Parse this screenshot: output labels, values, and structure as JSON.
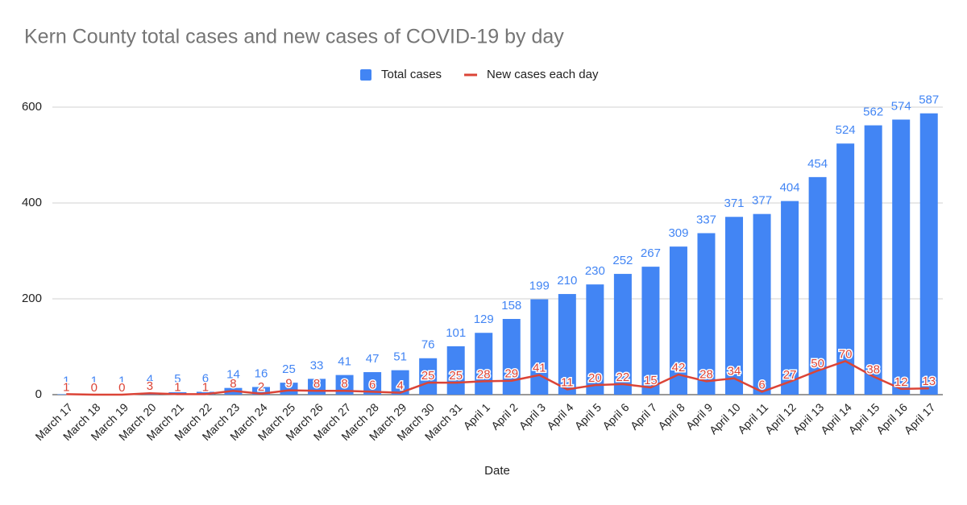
{
  "chart_data": {
    "type": "bar",
    "title": "Kern County total cases and new cases of COVID-19 by day",
    "x_label": "Date",
    "categories": [
      "March 17",
      "March 18",
      "March 19",
      "March 20",
      "March 21",
      "March 22",
      "March 23",
      "March 24",
      "March 25",
      "March 26",
      "March 27",
      "March 28",
      "March 29",
      "March 30",
      "March 31",
      "April 1",
      "April 2",
      "April 3",
      "April 4",
      "April 5",
      "April 6",
      "April 7",
      "April 8",
      "April 9",
      "April 10",
      "April 11",
      "April 12",
      "April 13",
      "April 14",
      "April 15",
      "April 16",
      "April 17"
    ],
    "series": [
      {
        "name": "Total cases",
        "type": "bar",
        "color": "#4285f4",
        "values": [
          1,
          1,
          1,
          4,
          5,
          6,
          14,
          16,
          25,
          33,
          41,
          47,
          51,
          76,
          101,
          129,
          158,
          199,
          210,
          230,
          252,
          267,
          309,
          337,
          371,
          377,
          404,
          454,
          524,
          562,
          574,
          587
        ]
      },
      {
        "name": "New cases each day",
        "type": "line",
        "color": "#db4437",
        "values": [
          1,
          0,
          0,
          3,
          1,
          1,
          8,
          2,
          9,
          8,
          8,
          6,
          4,
          25,
          25,
          28,
          29,
          41,
          11,
          20,
          22,
          15,
          42,
          28,
          34,
          6,
          27,
          50,
          70,
          38,
          12,
          13
        ]
      }
    ],
    "ylim": [
      0,
      600
    ],
    "yticks": [
      0,
      200,
      400,
      600
    ],
    "grid": true,
    "legend": "top",
    "data_labels": true
  }
}
